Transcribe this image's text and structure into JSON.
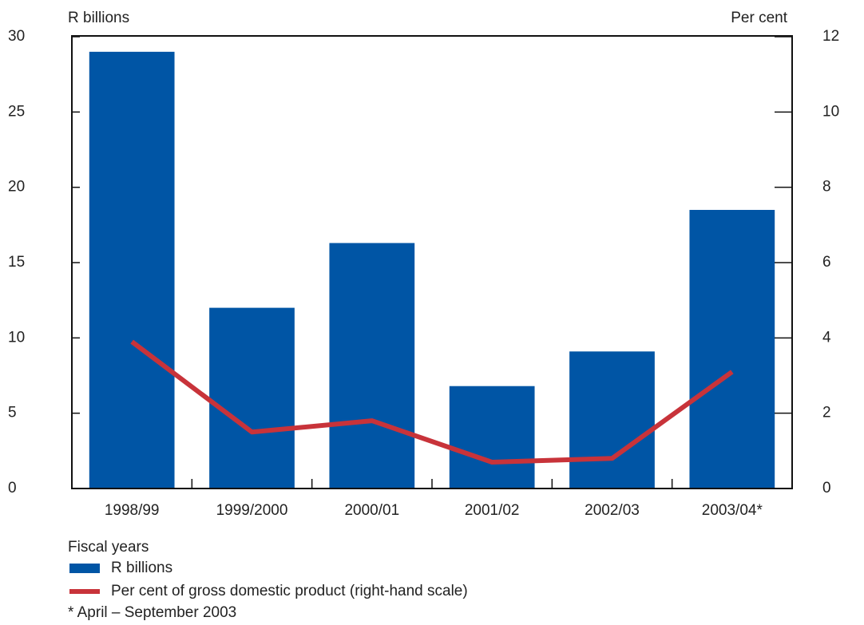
{
  "chart_data": {
    "type": "bar-line",
    "left_axis_label": "R billions",
    "right_axis_label": "Per cent",
    "x_label": "Fiscal years",
    "note": "* April – September 2003",
    "categories": [
      "1998/99",
      "1999/2000",
      "2000/01",
      "2001/02",
      "2002/03",
      "2003/04*"
    ],
    "series": [
      {
        "name": "R billions",
        "type": "bar",
        "color": "#0055a5",
        "values": [
          29.0,
          12.0,
          16.3,
          6.8,
          9.1,
          18.5
        ]
      },
      {
        "name": "Per cent of gross domestic product (right-hand scale)",
        "type": "line",
        "axis": "y2",
        "color": "#c8333a",
        "values": [
          3.9,
          1.5,
          1.8,
          0.7,
          0.8,
          3.1
        ]
      }
    ],
    "ylim": [
      0,
      30
    ],
    "yticks": [
      0,
      5,
      10,
      15,
      20,
      25,
      30
    ],
    "y2lim": [
      0,
      12
    ],
    "y2ticks": [
      0,
      2,
      4,
      6,
      8,
      10,
      12
    ]
  }
}
